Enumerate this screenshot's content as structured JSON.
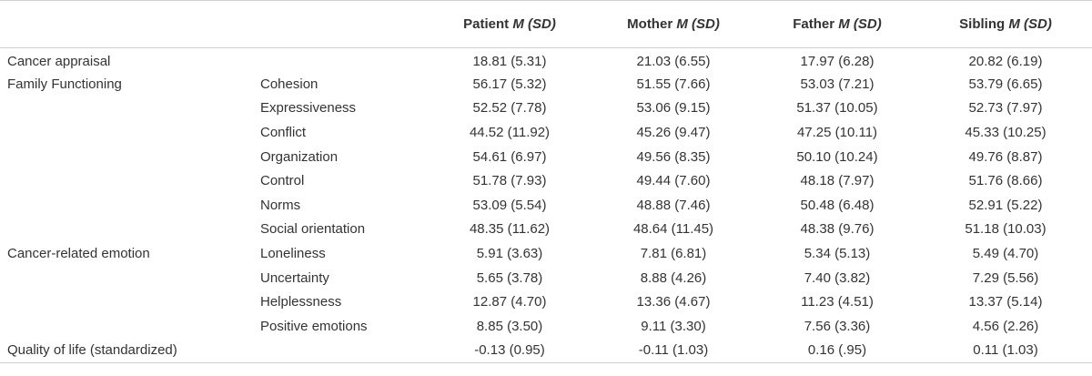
{
  "header": {
    "columns": [
      {
        "name": "Patient",
        "stat": "M (SD)"
      },
      {
        "name": "Mother",
        "stat": "M (SD)"
      },
      {
        "name": "Father",
        "stat": "M (SD)"
      },
      {
        "name": "Sibling",
        "stat": "M (SD)"
      }
    ]
  },
  "rows": [
    {
      "category": "Cancer appraisal",
      "sub": "",
      "values": [
        "18.81 (5.31)",
        "21.03 (6.55)",
        "17.97 (6.28)",
        "20.82 (6.19)"
      ]
    },
    {
      "category": "Family Functioning",
      "sub": "Cohesion",
      "values": [
        "56.17 (5.32)",
        "51.55 (7.66)",
        "53.03 (7.21)",
        "53.79 (6.65)"
      ]
    },
    {
      "category": "",
      "sub": "Expressiveness",
      "values": [
        "52.52 (7.78)",
        "53.06 (9.15)",
        "51.37 (10.05)",
        "52.73 (7.97)"
      ]
    },
    {
      "category": "",
      "sub": "Conflict",
      "values": [
        "44.52 (11.92)",
        "45.26 (9.47)",
        "47.25 (10.11)",
        "45.33 (10.25)"
      ]
    },
    {
      "category": "",
      "sub": "Organization",
      "values": [
        "54.61 (6.97)",
        "49.56 (8.35)",
        "50.10 (10.24)",
        "49.76 (8.87)"
      ]
    },
    {
      "category": "",
      "sub": "Control",
      "values": [
        "51.78 (7.93)",
        "49.44 (7.60)",
        "48.18 (7.97)",
        "51.76 (8.66)"
      ]
    },
    {
      "category": "",
      "sub": "Norms",
      "values": [
        "53.09 (5.54)",
        "48.88 (7.46)",
        "50.48 (6.48)",
        "52.91 (5.22)"
      ]
    },
    {
      "category": "",
      "sub": "Social orientation",
      "values": [
        "48.35 (11.62)",
        "48.64 (11.45)",
        "48.38 (9.76)",
        "51.18 (10.03)"
      ]
    },
    {
      "category": "Cancer-related emotion",
      "sub": "Loneliness",
      "values": [
        "5.91 (3.63)",
        "7.81 (6.81)",
        "5.34 (5.13)",
        "5.49 (4.70)"
      ]
    },
    {
      "category": "",
      "sub": "Uncertainty",
      "values": [
        "5.65 (3.78)",
        "8.88 (4.26)",
        "7.40 (3.82)",
        "7.29 (5.56)"
      ]
    },
    {
      "category": "",
      "sub": "Helplessness",
      "values": [
        "12.87 (4.70)",
        "13.36 (4.67)",
        "11.23 (4.51)",
        "13.37 (5.14)"
      ]
    },
    {
      "category": "",
      "sub": "Positive emotions",
      "values": [
        "8.85 (3.50)",
        "9.11 (3.30)",
        "7.56 (3.36)",
        "4.56 (2.26)"
      ]
    },
    {
      "category": "Quality of life (standardized)",
      "sub": "",
      "values": [
        "-0.13 (0.95)",
        "-0.11 (1.03)",
        "0.16 (.95)",
        "0.11 (1.03)"
      ]
    }
  ]
}
